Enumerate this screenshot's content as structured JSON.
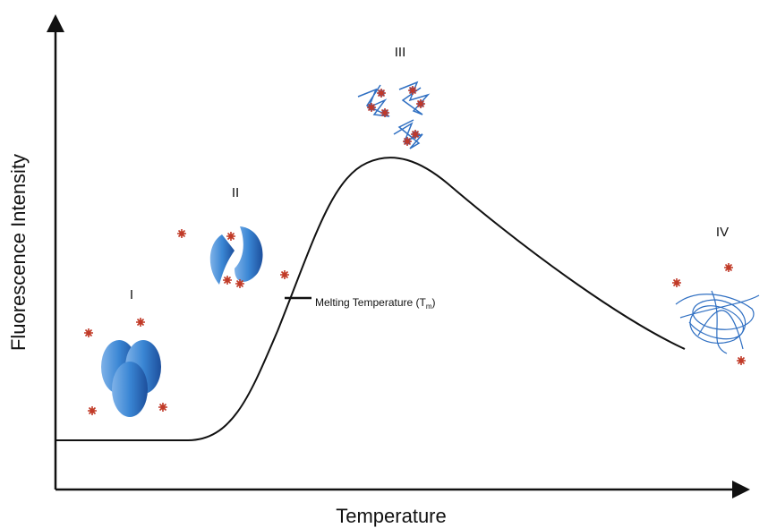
{
  "axes": {
    "y_label": "Fluorescence Intensity",
    "x_label": "Temperature"
  },
  "stages": [
    {
      "label": "I"
    },
    {
      "label": "II"
    },
    {
      "label": "III"
    },
    {
      "label": "IV"
    }
  ],
  "annotation": {
    "text": "Melting Temperature (T",
    "subscript": "m",
    "suffix": ")"
  }
}
